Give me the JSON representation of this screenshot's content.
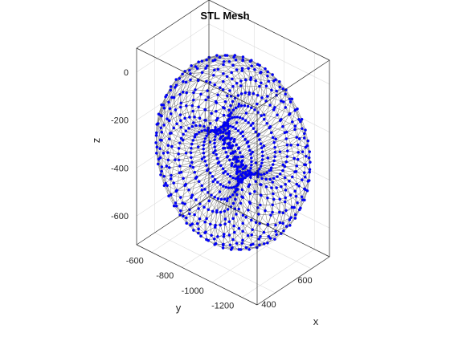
{
  "chart_data": {
    "type": "scatter",
    "title": "STL Mesh",
    "xlabel": "x",
    "ylabel": "y",
    "zlabel": "z",
    "x_ticks": [
      400,
      600
    ],
    "y_ticks": [
      -600,
      -800,
      -1000,
      -1200
    ],
    "z_ticks": [
      0,
      -200,
      -400,
      -600
    ],
    "xlim": [
      300,
      700
    ],
    "ylim": [
      -1300,
      -500
    ],
    "zlim": [
      -720,
      100
    ],
    "grid": true,
    "box": true,
    "series": [
      {
        "kind": "triangle-mesh-edges",
        "color": "#808080"
      },
      {
        "kind": "vertex-markers",
        "color": "#0000ff"
      }
    ]
  }
}
